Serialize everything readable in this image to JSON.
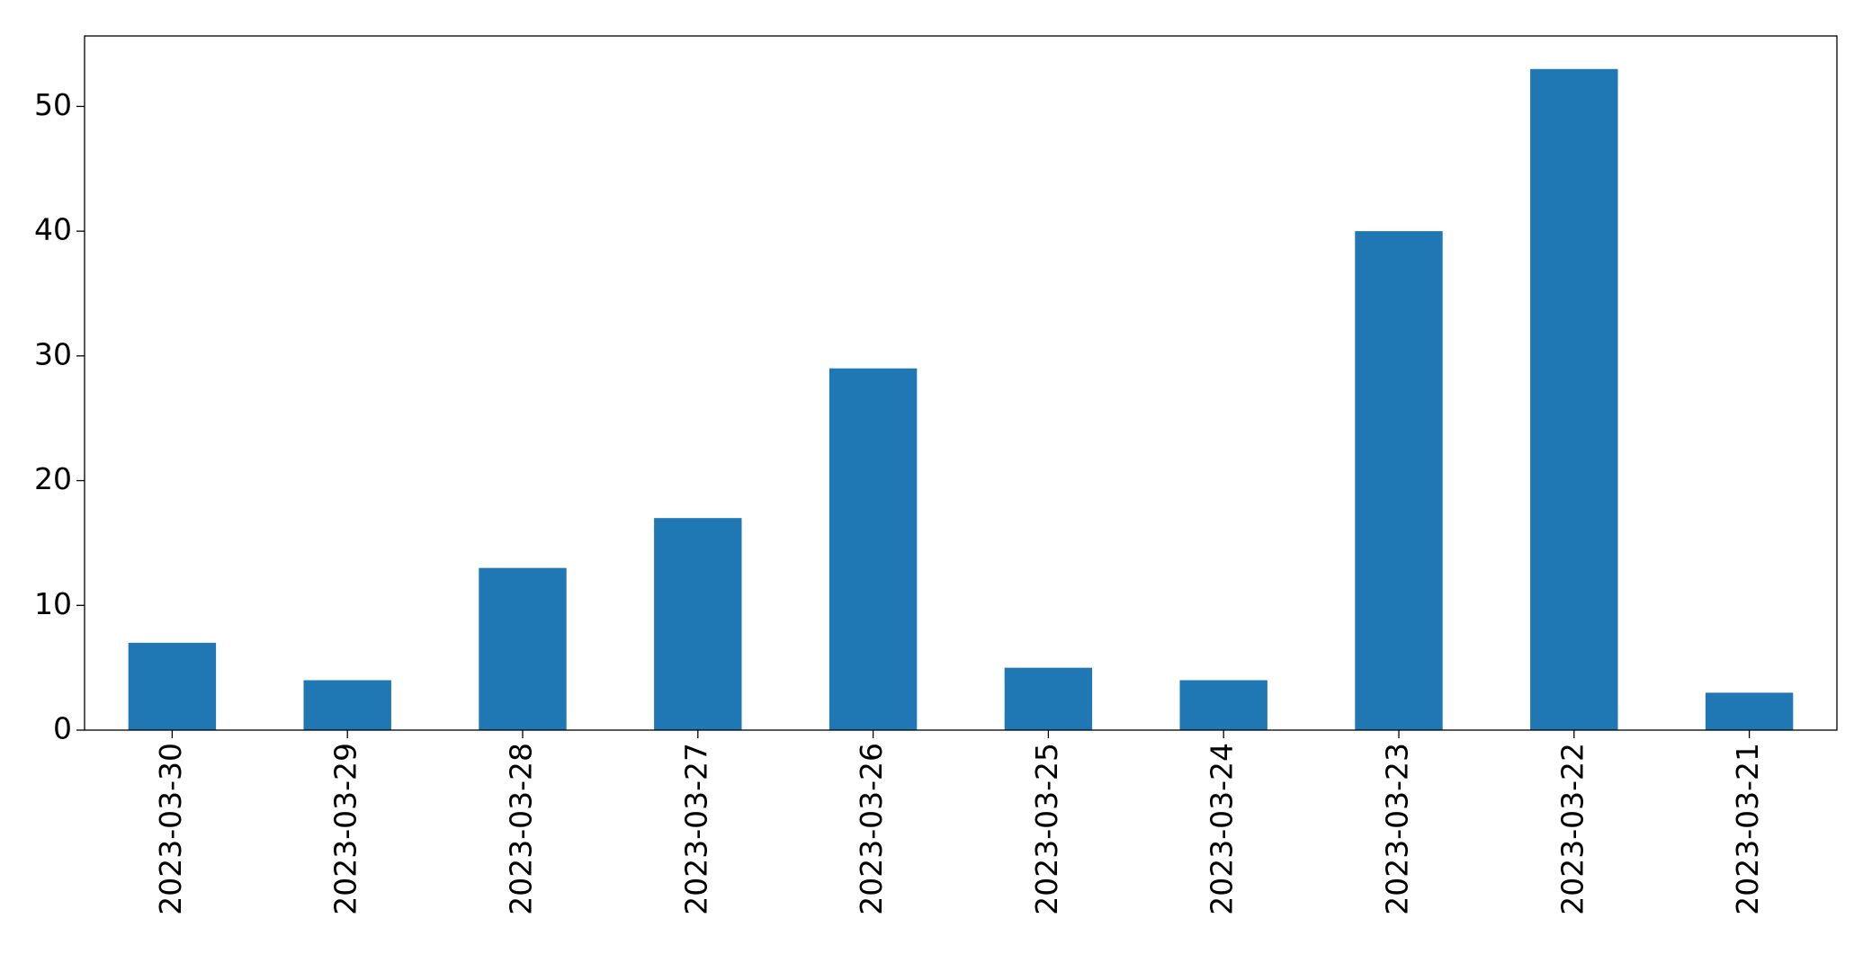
{
  "chart_data": {
    "type": "bar",
    "categories": [
      "2023-03-30",
      "2023-03-29",
      "2023-03-28",
      "2023-03-27",
      "2023-03-26",
      "2023-03-25",
      "2023-03-24",
      "2023-03-23",
      "2023-03-22",
      "2023-03-21"
    ],
    "values": [
      7,
      4,
      13,
      17,
      29,
      5,
      4,
      40,
      53,
      3
    ],
    "color": "#1f77b4",
    "ylim": [
      0,
      55.65
    ],
    "yticks": [
      0,
      10,
      20,
      30,
      40,
      50
    ],
    "grid": false
  }
}
